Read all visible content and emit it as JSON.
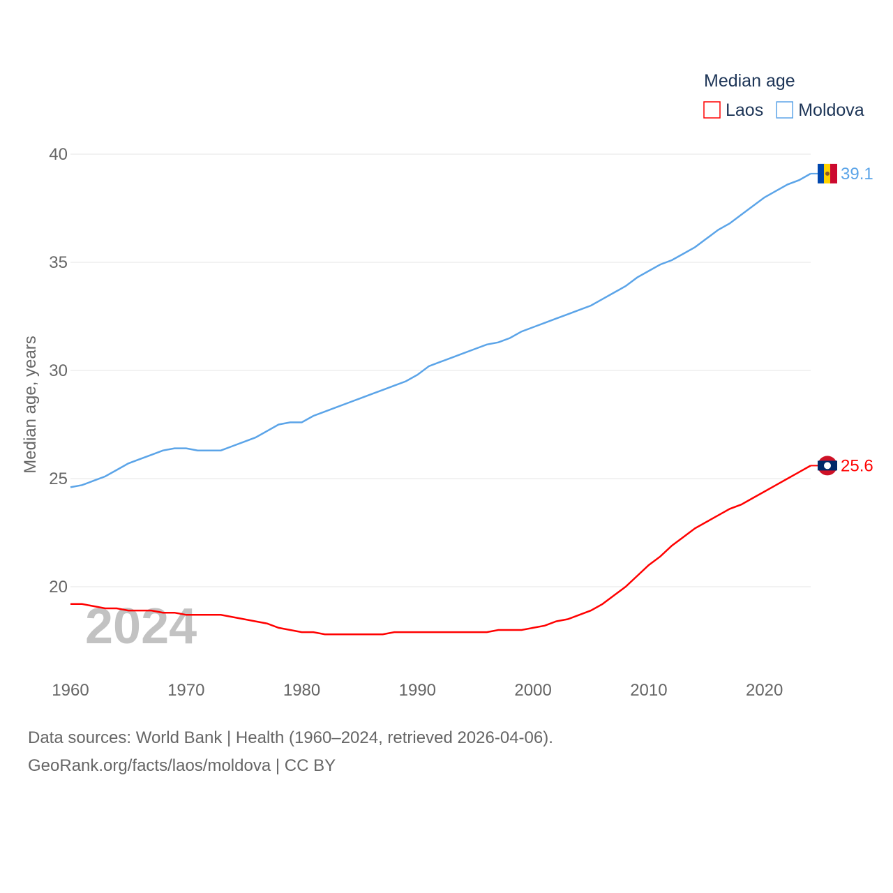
{
  "chart_data": {
    "type": "line",
    "title": "",
    "ylabel": "Median age, years",
    "xlabel": "",
    "ylim": [
      16.2,
      40
    ],
    "xlim": [
      1960,
      2024
    ],
    "yticks": [
      20,
      25,
      30,
      35,
      40
    ],
    "xticks": [
      1960,
      1970,
      1980,
      1990,
      2000,
      2010,
      2020
    ],
    "grid": true,
    "legend": {
      "title": "Median age",
      "placement": "top-right"
    },
    "year_watermark": "2024",
    "x": [
      1960,
      1961,
      1962,
      1963,
      1964,
      1965,
      1966,
      1967,
      1968,
      1969,
      1970,
      1971,
      1972,
      1973,
      1974,
      1975,
      1976,
      1977,
      1978,
      1979,
      1980,
      1981,
      1982,
      1983,
      1984,
      1985,
      1986,
      1987,
      1988,
      1989,
      1990,
      1991,
      1992,
      1993,
      1994,
      1995,
      1996,
      1997,
      1998,
      1999,
      2000,
      2001,
      2002,
      2003,
      2004,
      2005,
      2006,
      2007,
      2008,
      2009,
      2010,
      2011,
      2012,
      2013,
      2014,
      2015,
      2016,
      2017,
      2018,
      2019,
      2020,
      2021,
      2022,
      2023,
      2024
    ],
    "series": [
      {
        "name": "Laos",
        "color": "#ff0000",
        "end_label": "25.6",
        "flag": "laos-flag",
        "values": [
          19.2,
          19.2,
          19.1,
          19.0,
          19.0,
          18.9,
          18.9,
          18.9,
          18.8,
          18.8,
          18.7,
          18.7,
          18.7,
          18.7,
          18.6,
          18.5,
          18.4,
          18.3,
          18.1,
          18.0,
          17.9,
          17.9,
          17.8,
          17.8,
          17.8,
          17.8,
          17.8,
          17.8,
          17.9,
          17.9,
          17.9,
          17.9,
          17.9,
          17.9,
          17.9,
          17.9,
          17.9,
          18.0,
          18.0,
          18.0,
          18.1,
          18.2,
          18.4,
          18.5,
          18.7,
          18.9,
          19.2,
          19.6,
          20.0,
          20.5,
          21.0,
          21.4,
          21.9,
          22.3,
          22.7,
          23.0,
          23.3,
          23.6,
          23.8,
          24.1,
          24.4,
          24.7,
          25.0,
          25.3,
          25.6
        ]
      },
      {
        "name": "Moldova",
        "color": "#5ba4e8",
        "end_label": "39.1",
        "flag": "moldova-flag",
        "values": [
          24.6,
          24.7,
          24.9,
          25.1,
          25.4,
          25.7,
          25.9,
          26.1,
          26.3,
          26.4,
          26.4,
          26.3,
          26.3,
          26.3,
          26.5,
          26.7,
          26.9,
          27.2,
          27.5,
          27.6,
          27.6,
          27.9,
          28.1,
          28.3,
          28.5,
          28.7,
          28.9,
          29.1,
          29.3,
          29.5,
          29.8,
          30.2,
          30.4,
          30.6,
          30.8,
          31.0,
          31.2,
          31.3,
          31.5,
          31.8,
          32.0,
          32.2,
          32.4,
          32.6,
          32.8,
          33.0,
          33.3,
          33.6,
          33.9,
          34.3,
          34.6,
          34.9,
          35.1,
          35.4,
          35.7,
          36.1,
          36.5,
          36.8,
          37.2,
          37.6,
          38.0,
          38.3,
          38.6,
          38.8,
          39.1
        ]
      }
    ]
  },
  "footer": {
    "line1": "Data sources: World Bank | Health (1960–2024, retrieved 2026-04-06).",
    "line2": "GeoRank.org/facts/laos/moldova | CC BY"
  }
}
